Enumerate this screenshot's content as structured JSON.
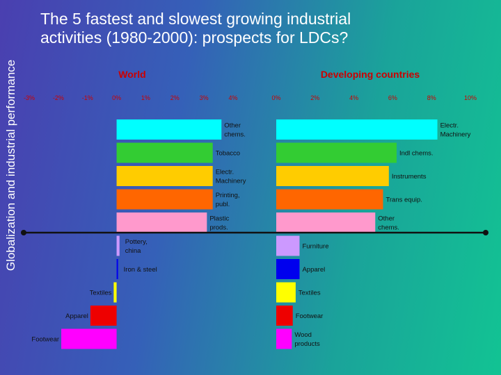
{
  "slide": {
    "side_title": "Globalization and industrial performance",
    "title_line1": "The 5 fastest and slowest growing industrial",
    "title_line2": "activities (1980-2000): prospects for LDCs?"
  },
  "colors": {
    "cyan": "#00ffff",
    "green": "#33cc33",
    "yellow": "#ffcc00",
    "orange": "#ff6600",
    "pink": "#ff99cc",
    "lavender": "#cc99ff",
    "blue": "#0000ee",
    "brightyellow": "#ffff00",
    "red": "#ee0000",
    "magenta": "#ff00ff",
    "axis_line": "#111111",
    "tick_text": "#cc0000",
    "title_text": "#cc0000"
  },
  "chart_data": [
    {
      "type": "bar",
      "orientation": "horizontal",
      "title": "World",
      "xlim": [
        -3,
        4
      ],
      "ticks": [
        -3,
        -2,
        -1,
        0,
        1,
        2,
        3,
        4
      ],
      "tick_labels": [
        "-3%",
        "-2%",
        "-1%",
        "0%",
        "1%",
        "2%",
        "3%",
        "4%"
      ],
      "categories": [
        "Other chems.",
        "Tobacco",
        "Electr. Machinery",
        "Printing, publ.",
        "Plastic prods.",
        "Pottery, china",
        "Iron & steel",
        "Textiles",
        "Apparel",
        "Footwear"
      ],
      "label_lines": [
        [
          "Other",
          "chems."
        ],
        [
          "Tobacco"
        ],
        [
          "Electr.",
          "Machinery"
        ],
        [
          "Printing,",
          "publ."
        ],
        [
          "Plastic",
          "prods."
        ],
        [
          "Pottery,",
          "china"
        ],
        [
          "Iron & steel"
        ],
        [
          "Textiles"
        ],
        [
          "Apparel"
        ],
        [
          "Footwear"
        ]
      ],
      "values": [
        3.6,
        3.3,
        3.3,
        3.3,
        3.1,
        0.1,
        0.05,
        -0.1,
        -0.9,
        -1.9
      ],
      "colors": [
        "#00ffff",
        "#33cc33",
        "#ffcc00",
        "#ff6600",
        "#ff99cc",
        "#cc99ff",
        "#0000ee",
        "#ffff00",
        "#ee0000",
        "#ff00ff"
      ]
    },
    {
      "type": "bar",
      "orientation": "horizontal",
      "title": "Developing countries",
      "xlim": [
        0,
        10
      ],
      "ticks": [
        0,
        2,
        4,
        6,
        8,
        10
      ],
      "tick_labels": [
        "0%",
        "2%",
        "4%",
        "6%",
        "8%",
        "10%"
      ],
      "categories": [
        "Electr. Machinery",
        "Indl chems.",
        "Instruments",
        "Trans equip.",
        "Other chems.",
        "Furniture",
        "Apparel",
        "Textiles",
        "Footwear",
        "Wood products"
      ],
      "label_lines": [
        [
          "Electr.",
          "Machinery"
        ],
        [
          "Indl chems."
        ],
        [
          "Instruments"
        ],
        [
          "Trans equip."
        ],
        [
          "Other",
          "chems."
        ],
        [
          "Furniture"
        ],
        [
          "Apparel"
        ],
        [
          "Textiles"
        ],
        [
          "Footwear"
        ],
        [
          "Wood",
          "products"
        ]
      ],
      "values": [
        8.3,
        6.2,
        5.8,
        5.5,
        5.1,
        1.2,
        1.2,
        1.0,
        0.85,
        0.8
      ],
      "colors": [
        "#00ffff",
        "#33cc33",
        "#ffcc00",
        "#ff6600",
        "#ff99cc",
        "#cc99ff",
        "#0000ee",
        "#ffff00",
        "#ee0000",
        "#ff00ff"
      ]
    }
  ]
}
